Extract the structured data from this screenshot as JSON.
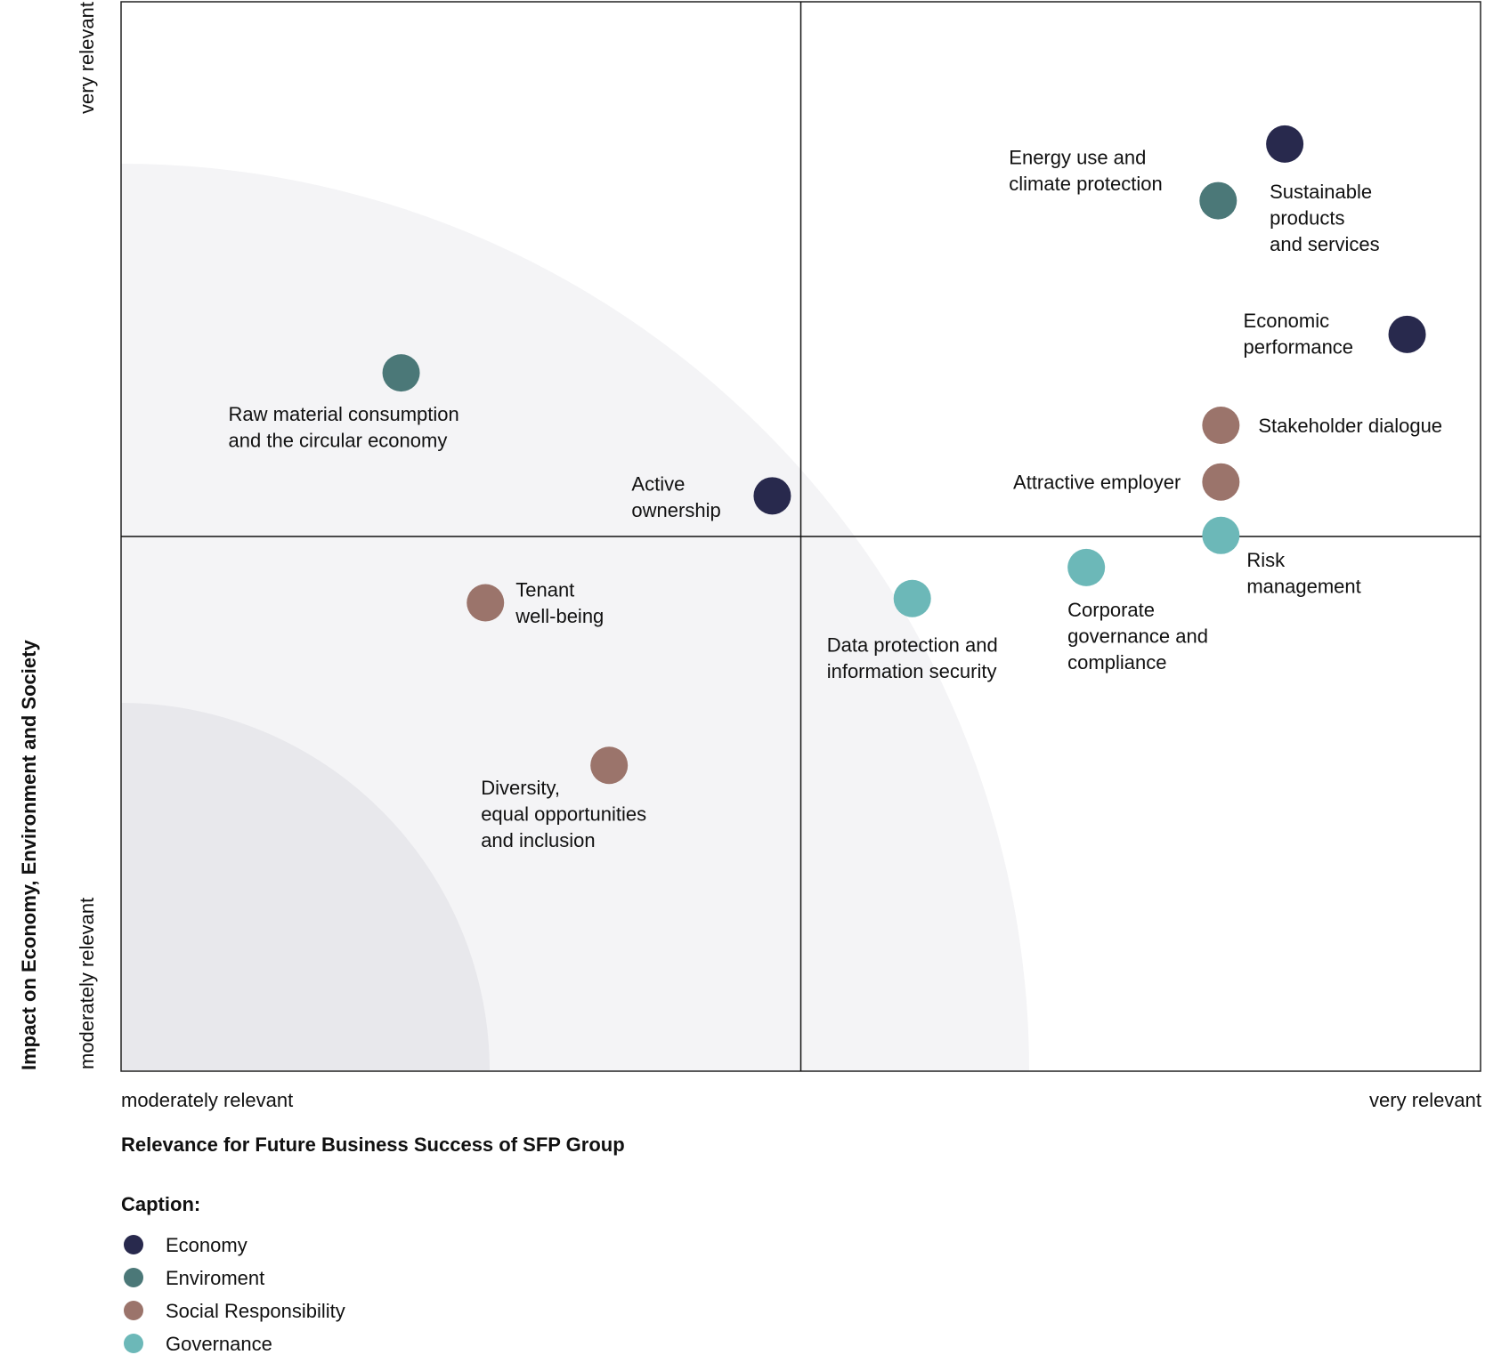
{
  "chart_data": {
    "type": "scatter",
    "title": "",
    "xlabel": "Relevance for Future Business Success of SFP Group",
    "ylabel": "Impact on Economy, Environment and Society",
    "x_tick_labels": {
      "low": "moderately relevant",
      "high": "very relevant"
    },
    "y_tick_labels": {
      "low": "moderately relevant",
      "high": "very relevant"
    },
    "xlim": [
      0,
      10
    ],
    "ylim": [
      0,
      10
    ],
    "quadrant_split": {
      "x": 5,
      "y": 5
    },
    "grid": false,
    "zones": [
      {
        "name": "outer-zone",
        "radius_fraction": 0.67,
        "color": "#f4f4f6"
      },
      {
        "name": "inner-zone",
        "radius_fraction": 0.27,
        "color": "#e8e8ec"
      }
    ],
    "legend": {
      "title": "Caption:",
      "position": "bottom-left",
      "items": [
        {
          "name": "Economy",
          "color": "#28294d"
        },
        {
          "name": "Enviroment",
          "color": "#4b7878"
        },
        {
          "name": "Social Responsibility",
          "color": "#9b746b"
        },
        {
          "name": "Governance",
          "color": "#6cb8b8"
        }
      ]
    },
    "points": [
      {
        "label": [
          "Energy use and",
          "climate protection"
        ],
        "category": "Enviroment",
        "x": 8.07,
        "y": 8.14
      },
      {
        "label": [
          "Sustainable",
          "products",
          "and services"
        ],
        "category": "Economy",
        "x": 8.56,
        "y": 8.67
      },
      {
        "label": [
          "Economic",
          "performance"
        ],
        "category": "Economy",
        "x": 9.46,
        "y": 6.89
      },
      {
        "label": [
          "Stakeholder dialogue"
        ],
        "category": "Social Responsibility",
        "x": 8.09,
        "y": 6.04
      },
      {
        "label": [
          "Attractive employer"
        ],
        "category": "Social Responsibility",
        "x": 8.09,
        "y": 5.51
      },
      {
        "label": [
          "Risk",
          "management"
        ],
        "category": "Governance",
        "x": 8.09,
        "y": 5.01
      },
      {
        "label": [
          "Corporate",
          "governance and",
          "compliance"
        ],
        "category": "Governance",
        "x": 7.1,
        "y": 4.71
      },
      {
        "label": [
          "Data protection and",
          "information security"
        ],
        "category": "Governance",
        "x": 5.82,
        "y": 4.42
      },
      {
        "label": [
          "Raw material consumption",
          "and the circular economy"
        ],
        "category": "Enviroment",
        "x": 2.06,
        "y": 6.53
      },
      {
        "label": [
          "Active",
          "ownership"
        ],
        "category": "Economy",
        "x": 4.79,
        "y": 5.38
      },
      {
        "label": [
          "Tenant",
          "well-being"
        ],
        "category": "Social Responsibility",
        "x": 2.68,
        "y": 4.38
      },
      {
        "label": [
          "Diversity,",
          "equal opportunities",
          "and inclusion"
        ],
        "category": "Social Responsibility",
        "x": 3.59,
        "y": 2.86
      }
    ]
  }
}
